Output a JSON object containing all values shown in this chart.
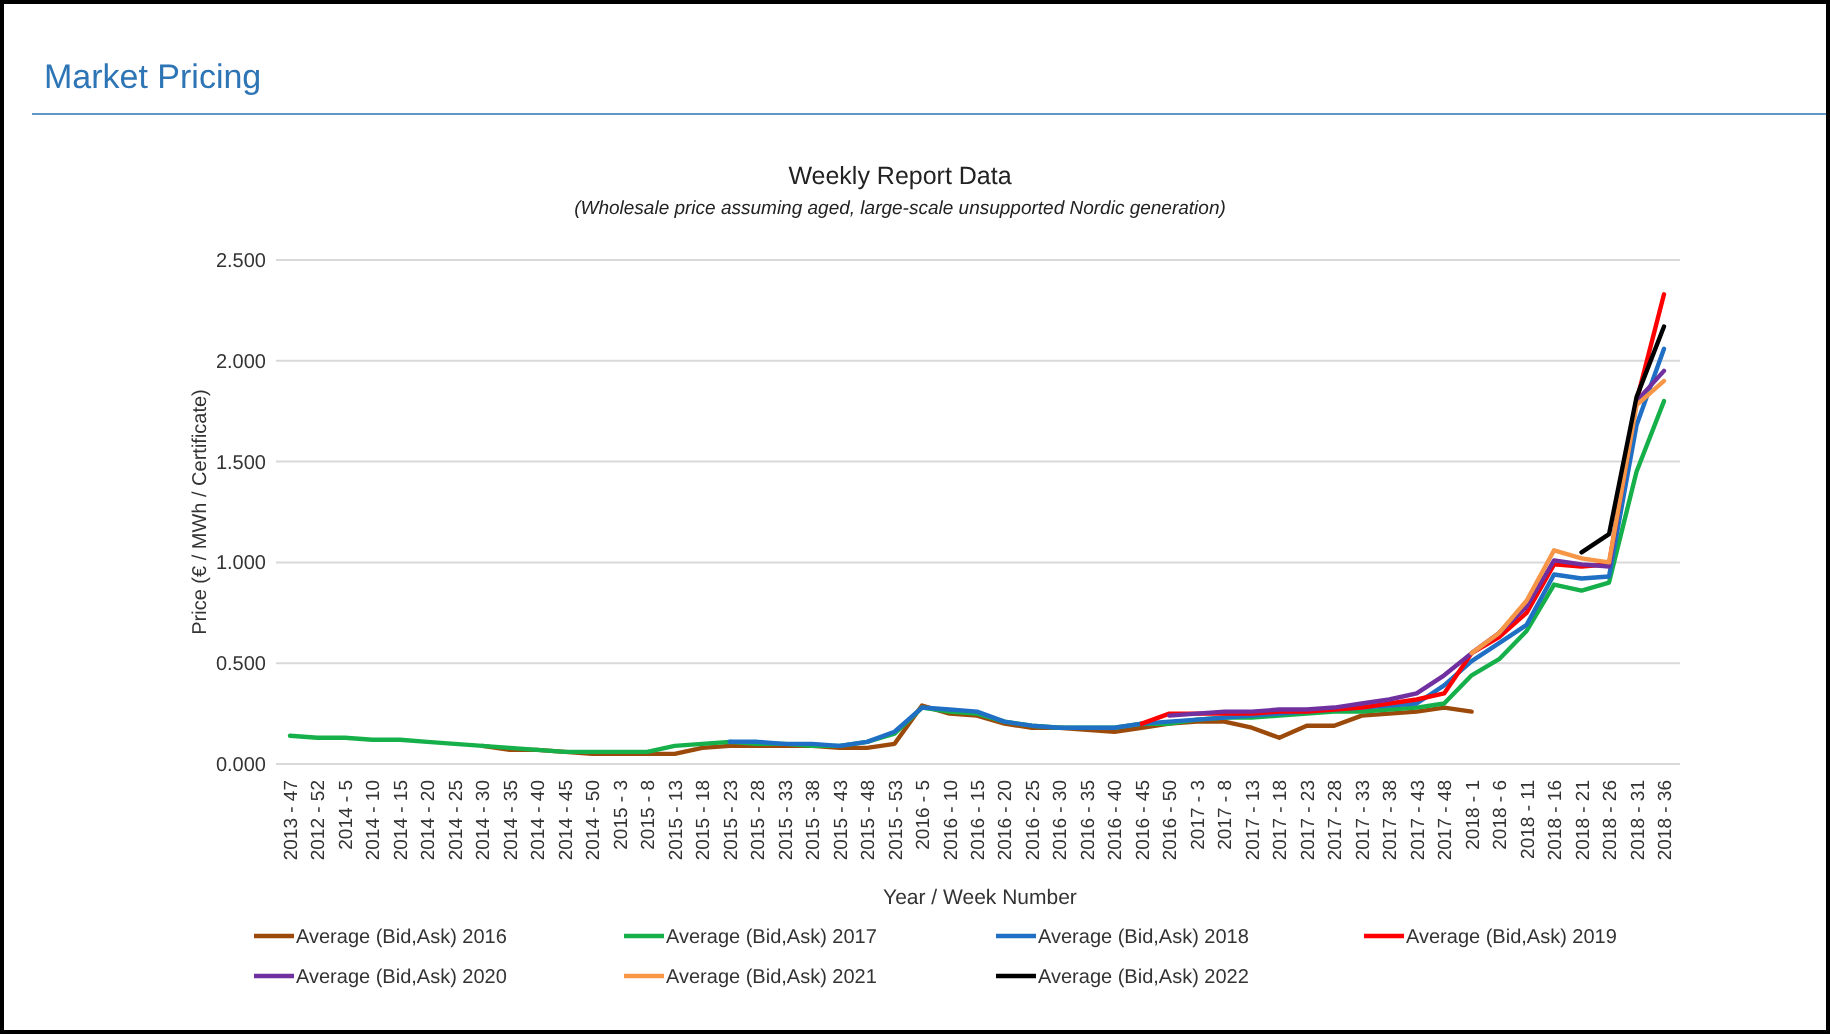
{
  "chart_data": {
    "type": "line",
    "title": "Weekly Report Data",
    "subtitle": "(Wholesale price assuming aged, large-scale unsupported Nordic generation)",
    "xlabel": "Year / Week Number",
    "ylabel": "Price (€ / MWh / Certificate)",
    "annotations": [
      "Market Pricing"
    ],
    "categories": [
      "2013 - 47",
      "2012 - 52",
      "2014 - 5",
      "2014 - 10",
      "2014 - 15",
      "2014 - 20",
      "2014 - 25",
      "2014 - 30",
      "2014 - 35",
      "2014 - 40",
      "2014 - 45",
      "2014 - 50",
      "2015 - 3",
      "2015 - 8",
      "2015 - 13",
      "2015 - 18",
      "2015 - 23",
      "2015 - 28",
      "2015 - 33",
      "2015 - 38",
      "2015 - 43",
      "2015 - 48",
      "2015 - 53",
      "2016 - 5",
      "2016 - 10",
      "2016 - 15",
      "2016 - 20",
      "2016 - 25",
      "2016 - 30",
      "2016 - 35",
      "2016 - 40",
      "2016 - 45",
      "2016 - 50",
      "2017 - 3",
      "2017 - 8",
      "2017 - 13",
      "2017 - 18",
      "2017 - 23",
      "2017 - 28",
      "2017 - 33",
      "2017 - 38",
      "2017 - 43",
      "2017 - 48",
      "2018 - 1",
      "2018 - 6",
      "2018 - 11",
      "2018 - 16",
      "2018 - 21",
      "2018 - 26",
      "2018 - 31",
      "2018 - 36"
    ],
    "series": [
      {
        "name": "Average (Bid,Ask) 2016",
        "color": "#9c4a0c",
        "values": [
          null,
          null,
          null,
          null,
          null,
          null,
          null,
          0.09,
          0.07,
          0.07,
          0.06,
          0.05,
          0.05,
          0.05,
          0.05,
          0.08,
          0.09,
          0.09,
          0.09,
          0.09,
          0.08,
          0.08,
          0.1,
          0.29,
          0.25,
          0.24,
          0.2,
          0.18,
          0.18,
          0.17,
          0.16,
          0.18,
          0.2,
          0.21,
          0.21,
          0.18,
          0.13,
          0.19,
          0.19,
          0.24,
          0.25,
          0.26,
          0.28,
          0.26,
          null,
          null,
          null,
          null,
          null,
          null,
          null
        ]
      },
      {
        "name": "Average (Bid,Ask) 2017",
        "color": "#16b04a",
        "values": [
          0.14,
          0.13,
          0.13,
          0.12,
          0.12,
          0.11,
          0.1,
          0.09,
          0.08,
          0.07,
          0.06,
          0.06,
          0.06,
          0.06,
          0.09,
          0.1,
          0.11,
          0.1,
          0.1,
          0.09,
          0.09,
          0.11,
          0.15,
          0.28,
          0.26,
          0.25,
          0.21,
          0.19,
          0.18,
          0.18,
          0.18,
          0.2,
          0.2,
          0.22,
          0.23,
          0.23,
          0.24,
          0.25,
          0.26,
          0.26,
          0.27,
          0.28,
          0.3,
          0.44,
          0.52,
          0.66,
          0.89,
          0.86,
          0.9,
          1.45,
          1.8
        ]
      },
      {
        "name": "Average (Bid,Ask) 2018",
        "color": "#1f6fc5",
        "values": [
          null,
          null,
          null,
          null,
          null,
          null,
          null,
          null,
          null,
          null,
          null,
          null,
          null,
          null,
          null,
          null,
          0.11,
          0.11,
          0.1,
          0.1,
          0.09,
          0.11,
          0.16,
          0.28,
          0.27,
          0.26,
          0.21,
          0.19,
          0.18,
          0.18,
          0.18,
          0.2,
          0.21,
          0.22,
          0.23,
          0.24,
          0.25,
          0.26,
          0.27,
          0.28,
          0.29,
          0.3,
          0.39,
          0.51,
          0.6,
          0.69,
          0.94,
          0.92,
          0.93,
          1.68,
          2.06
        ]
      },
      {
        "name": "Average (Bid,Ask) 2019",
        "color": "#ff0000",
        "values": [
          null,
          null,
          null,
          null,
          null,
          null,
          null,
          null,
          null,
          null,
          null,
          null,
          null,
          null,
          null,
          null,
          null,
          null,
          null,
          null,
          null,
          null,
          null,
          null,
          null,
          null,
          null,
          null,
          null,
          null,
          null,
          0.2,
          0.25,
          0.25,
          0.25,
          0.25,
          0.26,
          0.26,
          0.27,
          0.28,
          0.3,
          0.32,
          0.35,
          0.55,
          0.63,
          0.75,
          0.99,
          0.98,
          0.99,
          1.8,
          2.33
        ]
      },
      {
        "name": "Average (Bid,Ask) 2020",
        "color": "#7030a0",
        "values": [
          null,
          null,
          null,
          null,
          null,
          null,
          null,
          null,
          null,
          null,
          null,
          null,
          null,
          null,
          null,
          null,
          null,
          null,
          null,
          null,
          null,
          null,
          null,
          null,
          null,
          null,
          null,
          null,
          null,
          null,
          null,
          null,
          0.24,
          0.25,
          0.26,
          0.26,
          0.27,
          0.27,
          0.28,
          0.3,
          0.32,
          0.35,
          0.44,
          0.55,
          0.65,
          0.78,
          1.01,
          0.99,
          0.98,
          1.8,
          1.95
        ]
      },
      {
        "name": "Average (Bid,Ask) 2021",
        "color": "#f79646",
        "values": [
          null,
          null,
          null,
          null,
          null,
          null,
          null,
          null,
          null,
          null,
          null,
          null,
          null,
          null,
          null,
          null,
          null,
          null,
          null,
          null,
          null,
          null,
          null,
          null,
          null,
          null,
          null,
          null,
          null,
          null,
          null,
          null,
          null,
          null,
          null,
          null,
          null,
          null,
          null,
          null,
          null,
          null,
          null,
          0.55,
          0.65,
          0.81,
          1.06,
          1.02,
          1.0,
          1.78,
          1.9
        ]
      },
      {
        "name": "Average (Bid,Ask) 2022",
        "color": "#000000",
        "values": [
          null,
          null,
          null,
          null,
          null,
          null,
          null,
          null,
          null,
          null,
          null,
          null,
          null,
          null,
          null,
          null,
          null,
          null,
          null,
          null,
          null,
          null,
          null,
          null,
          null,
          null,
          null,
          null,
          null,
          null,
          null,
          null,
          null,
          null,
          null,
          null,
          null,
          null,
          null,
          null,
          null,
          null,
          null,
          null,
          null,
          null,
          null,
          1.05,
          1.14,
          1.82,
          2.17
        ]
      }
    ],
    "ylim": [
      0,
      2.5
    ],
    "yticks": [
      {
        "value": 0,
        "label": "0.000"
      },
      {
        "value": 0.5,
        "label": "0.500"
      },
      {
        "value": 1,
        "label": "1.000"
      },
      {
        "value": 1.5,
        "label": "1.500"
      },
      {
        "value": 2,
        "label": "2.000"
      },
      {
        "value": 2.5,
        "label": "2.500"
      }
    ],
    "grid": "y",
    "legend": "bottom",
    "line_style": "solid"
  }
}
